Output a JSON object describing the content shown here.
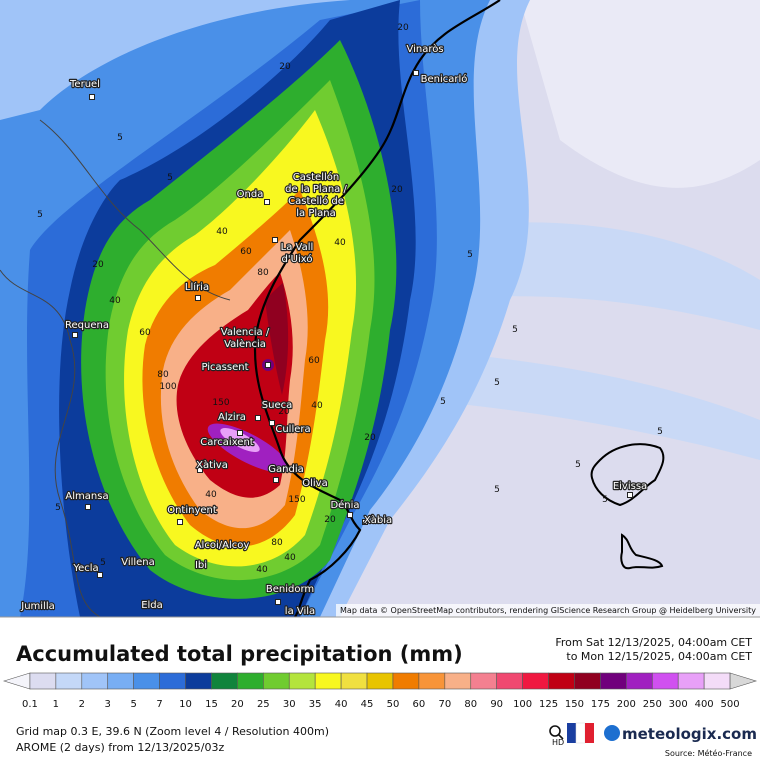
{
  "map": {
    "city_labels": [
      "Teruel",
      "Vinaròs",
      "Benicarló",
      "Castellón",
      "de la Plana /",
      "Castelló de",
      "la Plana",
      "Onda",
      "La Vall",
      "d'Uixó",
      "Llíria",
      "Requena",
      "Valencia /",
      "València",
      "Picassent",
      "Alzira",
      "Sueca",
      "Cullera",
      "Carcaixent",
      "Xàtiva",
      "Gandia",
      "Oliva",
      "Almansa",
      "Ontinyent",
      "Dénia",
      "Xàbia",
      "Alcoi/Alcoy",
      "Ibi",
      "Yecla",
      "Villena",
      "Benidorm",
      "Jumilla",
      "Elda",
      "la Vila",
      "Eivissa"
    ],
    "contour_labels": [
      20,
      20,
      5,
      20,
      40,
      40,
      60,
      80,
      40,
      20,
      5,
      5,
      60,
      80,
      100,
      150,
      20,
      40,
      60,
      20,
      5,
      5,
      5,
      40,
      150,
      20,
      80,
      40,
      40,
      5,
      5,
      5,
      5,
      5,
      5,
      5
    ],
    "attribution": "Map data © OpenStreetMap contributors, rendering GIScience Research Group @ Heidelberg University"
  },
  "title": "Accumulated total precipitation (mm)",
  "period": [
    "From Sat 12/13/2025, 04:00am CET",
    "to Mon 12/15/2025, 04:00am CET"
  ],
  "legend": {
    "labels": [
      "0.1",
      "1",
      "2",
      "3",
      "5",
      "7",
      "10",
      "15",
      "20",
      "25",
      "30",
      "35",
      "40",
      "45",
      "50",
      "60",
      "70",
      "80",
      "90",
      "100",
      "125",
      "150",
      "175",
      "200",
      "250",
      "300",
      "400",
      "500"
    ],
    "colors": [
      "#f4f4fa",
      "#dcdcf0",
      "#c4d8f8",
      "#a0c4f8",
      "#78aef4",
      "#4a90e8",
      "#2c6cd8",
      "#0c3c9c",
      "#10843c",
      "#2eae2e",
      "#70cc30",
      "#b4e43c",
      "#f8f820",
      "#f0e040",
      "#e8c400",
      "#f07c00",
      "#f89438",
      "#f8b088",
      "#f48090",
      "#f04870",
      "#f01840",
      "#c00014",
      "#900020",
      "#70007c",
      "#a020c0",
      "#d050f0",
      "#e8a0f8",
      "#f4dcf8",
      "#d8d8d8"
    ]
  },
  "footer": {
    "grid": "Grid map 0.3 E, 39.6 N (Zoom level 4 / Resolution 400m)",
    "model": "AROME (2 days) from 12/13/2025/03z",
    "hd": "HD",
    "brand": "meteologix.com",
    "source": "Source: Météo-France"
  }
}
